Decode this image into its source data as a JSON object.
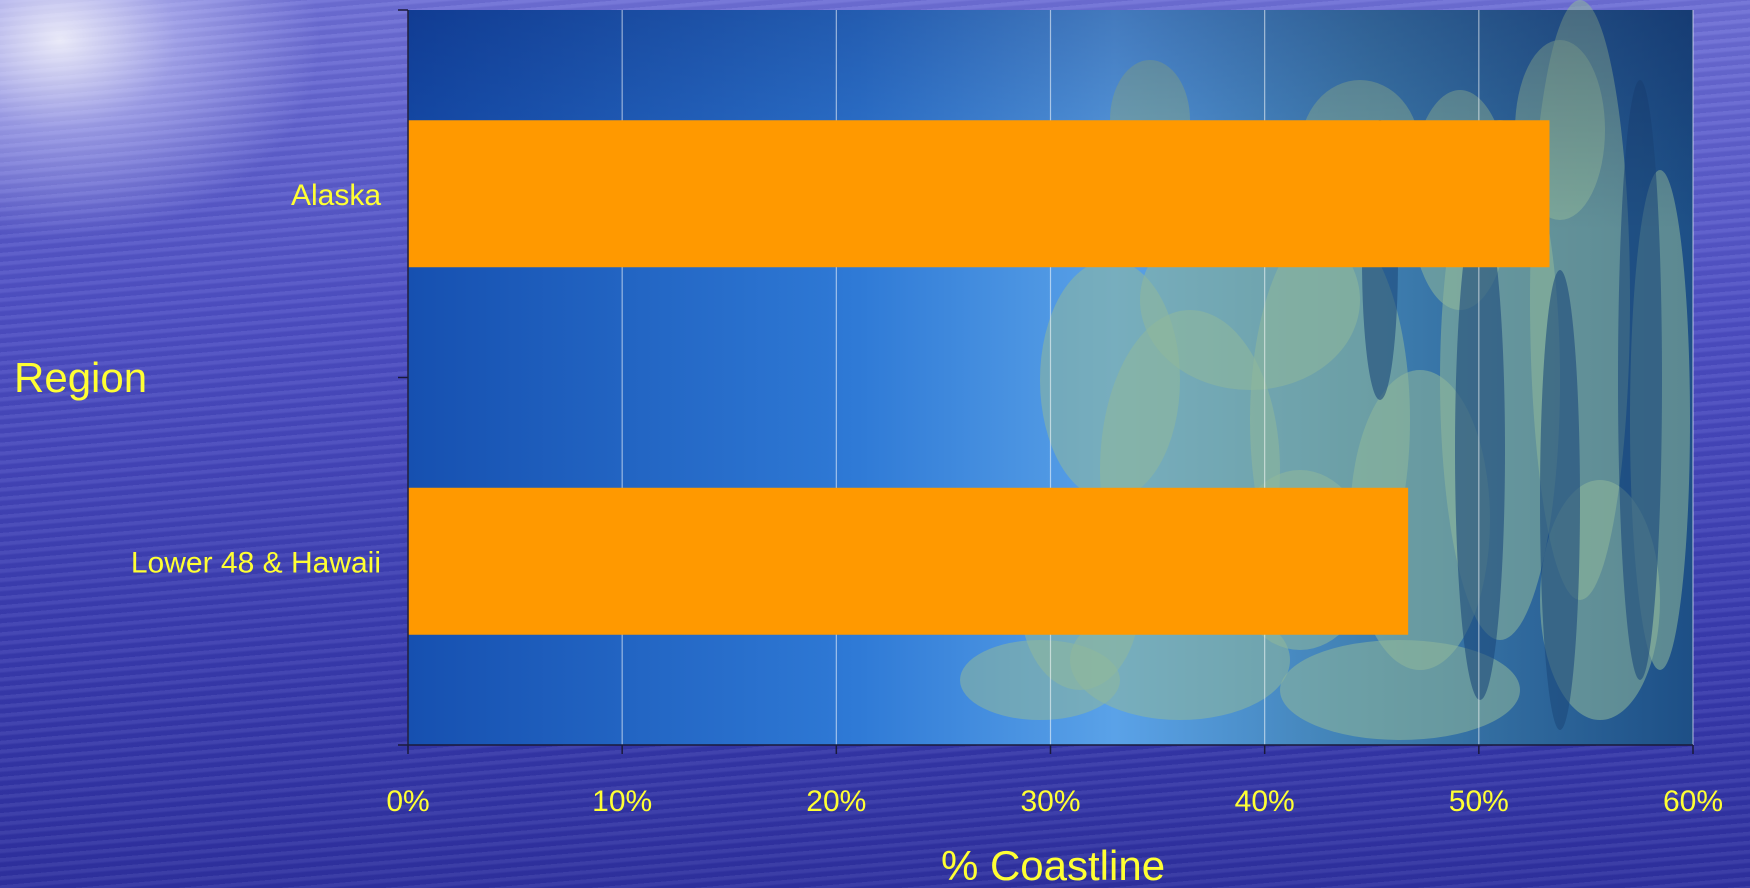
{
  "chart_data": {
    "type": "bar",
    "orientation": "horizontal",
    "categories": [
      "Alaska",
      "Lower 48 & Hawaii"
    ],
    "values": [
      0.533,
      0.467
    ],
    "xlabel": "% Coastline",
    "ylabel": "Region",
    "xlim": [
      0,
      0.6
    ],
    "x_ticks": [
      "0%",
      "10%",
      "20%",
      "30%",
      "40%",
      "50%",
      "60%"
    ],
    "grid": "vertical",
    "legend": "none",
    "colors": {
      "bar": "#ff9900",
      "label_text": "#ffff33",
      "plot_water": "#1d5fc0",
      "plot_land": "#8fb89a"
    }
  }
}
